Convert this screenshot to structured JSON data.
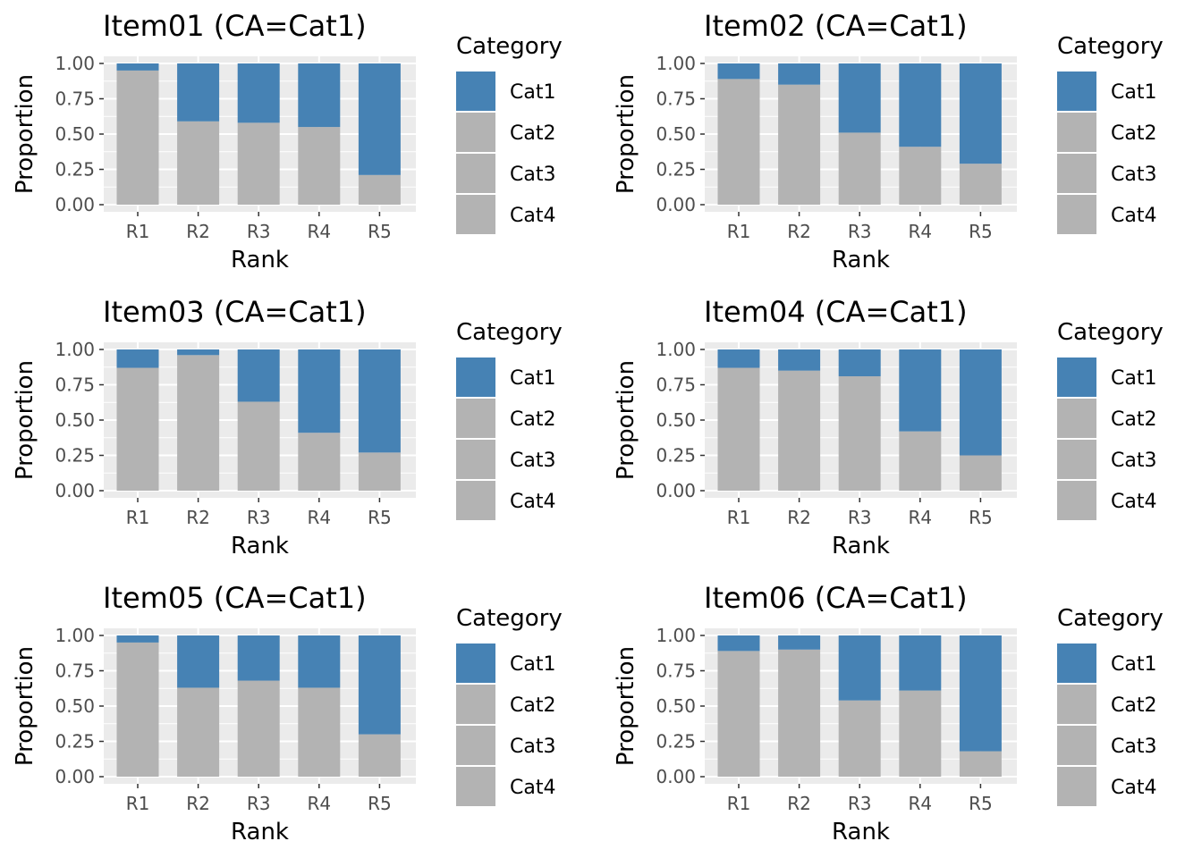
{
  "colors": {
    "cat1": "#4682B4",
    "other": "#B3B3B3",
    "panel_bg": "#EBEBEB",
    "grid": "#FFFFFF"
  },
  "chart_data": [
    {
      "type": "bar",
      "stacked": true,
      "title": "Item01 (CA=Cat1)",
      "xlabel": "Rank",
      "ylabel": "Proportion",
      "categories": [
        "R1",
        "R2",
        "R3",
        "R4",
        "R5"
      ],
      "ylim": [
        0,
        1
      ],
      "yticks": [
        "0.00",
        "0.25",
        "0.50",
        "0.75",
        "1.00"
      ],
      "grid": true,
      "legend": {
        "title": "Category",
        "entries": [
          "Cat1",
          "Cat2",
          "Cat3",
          "Cat4"
        ],
        "position": "right"
      },
      "series": [
        {
          "name": "Cat1",
          "values": [
            0.05,
            0.41,
            0.42,
            0.45,
            0.79
          ]
        },
        {
          "name": "Cat2+Cat3+Cat4",
          "values": [
            0.95,
            0.59,
            0.58,
            0.55,
            0.21
          ]
        }
      ]
    },
    {
      "type": "bar",
      "stacked": true,
      "title": "Item02 (CA=Cat1)",
      "xlabel": "Rank",
      "ylabel": "Proportion",
      "categories": [
        "R1",
        "R2",
        "R3",
        "R4",
        "R5"
      ],
      "ylim": [
        0,
        1
      ],
      "yticks": [
        "0.00",
        "0.25",
        "0.50",
        "0.75",
        "1.00"
      ],
      "grid": true,
      "legend": {
        "title": "Category",
        "entries": [
          "Cat1",
          "Cat2",
          "Cat3",
          "Cat4"
        ],
        "position": "right"
      },
      "series": [
        {
          "name": "Cat1",
          "values": [
            0.11,
            0.15,
            0.49,
            0.59,
            0.71
          ]
        },
        {
          "name": "Cat2+Cat3+Cat4",
          "values": [
            0.89,
            0.85,
            0.51,
            0.41,
            0.29
          ]
        }
      ]
    },
    {
      "type": "bar",
      "stacked": true,
      "title": "Item03 (CA=Cat1)",
      "xlabel": "Rank",
      "ylabel": "Proportion",
      "categories": [
        "R1",
        "R2",
        "R3",
        "R4",
        "R5"
      ],
      "ylim": [
        0,
        1
      ],
      "yticks": [
        "0.00",
        "0.25",
        "0.50",
        "0.75",
        "1.00"
      ],
      "grid": true,
      "legend": {
        "title": "Category",
        "entries": [
          "Cat1",
          "Cat2",
          "Cat3",
          "Cat4"
        ],
        "position": "right"
      },
      "series": [
        {
          "name": "Cat1",
          "values": [
            0.13,
            0.04,
            0.37,
            0.59,
            0.73
          ]
        },
        {
          "name": "Cat2+Cat3+Cat4",
          "values": [
            0.87,
            0.96,
            0.63,
            0.41,
            0.27
          ]
        }
      ]
    },
    {
      "type": "bar",
      "stacked": true,
      "title": "Item04 (CA=Cat1)",
      "xlabel": "Rank",
      "ylabel": "Proportion",
      "categories": [
        "R1",
        "R2",
        "R3",
        "R4",
        "R5"
      ],
      "ylim": [
        0,
        1
      ],
      "yticks": [
        "0.00",
        "0.25",
        "0.50",
        "0.75",
        "1.00"
      ],
      "grid": true,
      "legend": {
        "title": "Category",
        "entries": [
          "Cat1",
          "Cat2",
          "Cat3",
          "Cat4"
        ],
        "position": "right"
      },
      "series": [
        {
          "name": "Cat1",
          "values": [
            0.13,
            0.15,
            0.19,
            0.58,
            0.75
          ]
        },
        {
          "name": "Cat2+Cat3+Cat4",
          "values": [
            0.87,
            0.85,
            0.81,
            0.42,
            0.25
          ]
        }
      ]
    },
    {
      "type": "bar",
      "stacked": true,
      "title": "Item05 (CA=Cat1)",
      "xlabel": "Rank",
      "ylabel": "Proportion",
      "categories": [
        "R1",
        "R2",
        "R3",
        "R4",
        "R5"
      ],
      "ylim": [
        0,
        1
      ],
      "yticks": [
        "0.00",
        "0.25",
        "0.50",
        "0.75",
        "1.00"
      ],
      "grid": true,
      "legend": {
        "title": "Category",
        "entries": [
          "Cat1",
          "Cat2",
          "Cat3",
          "Cat4"
        ],
        "position": "right"
      },
      "series": [
        {
          "name": "Cat1",
          "values": [
            0.05,
            0.37,
            0.32,
            0.37,
            0.7
          ]
        },
        {
          "name": "Cat2+Cat3+Cat4",
          "values": [
            0.95,
            0.63,
            0.68,
            0.63,
            0.3
          ]
        }
      ]
    },
    {
      "type": "bar",
      "stacked": true,
      "title": "Item06 (CA=Cat1)",
      "xlabel": "Rank",
      "ylabel": "Proportion",
      "categories": [
        "R1",
        "R2",
        "R3",
        "R4",
        "R5"
      ],
      "ylim": [
        0,
        1
      ],
      "yticks": [
        "0.00",
        "0.25",
        "0.50",
        "0.75",
        "1.00"
      ],
      "grid": true,
      "legend": {
        "title": "Category",
        "entries": [
          "Cat1",
          "Cat2",
          "Cat3",
          "Cat4"
        ],
        "position": "right"
      },
      "series": [
        {
          "name": "Cat1",
          "values": [
            0.11,
            0.1,
            0.46,
            0.39,
            0.82
          ]
        },
        {
          "name": "Cat2+Cat3+Cat4",
          "values": [
            0.89,
            0.9,
            0.54,
            0.61,
            0.18
          ]
        }
      ]
    }
  ]
}
